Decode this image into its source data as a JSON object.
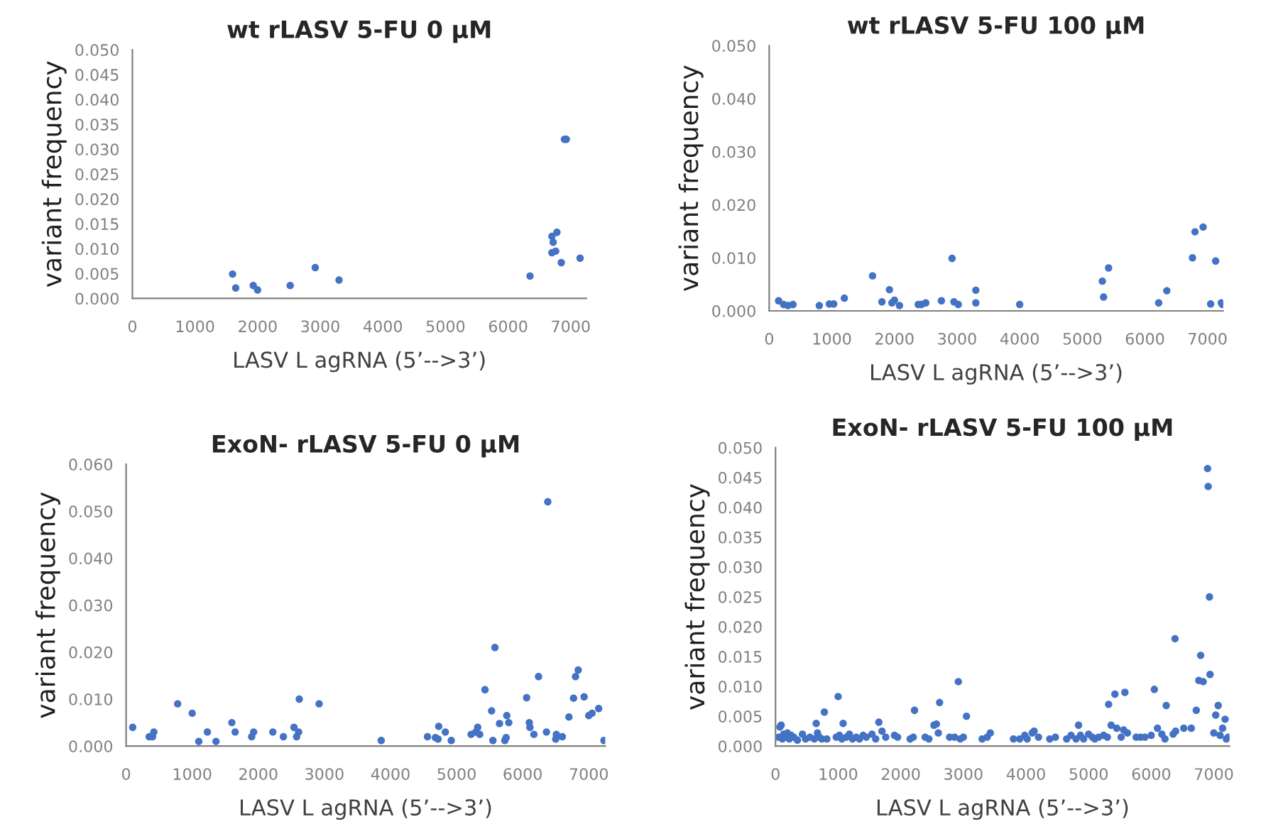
{
  "chart_data": [
    {
      "type": "scatter",
      "title": "wt rLASV 5-FU 0 μM",
      "xlabel": "LASV L agRNA (5’-->3’)",
      "ylabel": "variant frequency",
      "marker": "circle",
      "grid": false,
      "xlim": [
        0,
        7250
      ],
      "xticks": [
        0,
        1000,
        2000,
        3000,
        4000,
        5000,
        6000,
        7000
      ],
      "ylim": [
        0,
        0.05
      ],
      "yticks": [
        {
          "value": 0,
          "label": "0.000"
        },
        {
          "value": 0.005,
          "label": "0.005"
        },
        {
          "value": 0.01,
          "label": "0.010"
        },
        {
          "value": 0.015,
          "label": "0.015"
        },
        {
          "value": 0.02,
          "label": "0.020"
        },
        {
          "value": 0.025,
          "label": "0.025"
        },
        {
          "value": 0.03,
          "label": "0.030"
        },
        {
          "value": 0.035,
          "label": "0.035"
        },
        {
          "value": 0.04,
          "label": "0.040"
        },
        {
          "value": 0.045,
          "label": "0.045"
        },
        {
          "value": 0.05,
          "label": "0.050"
        }
      ],
      "series": [
        {
          "color": "#4472c4",
          "x": [
            1600,
            1650,
            1930,
            2000,
            2520,
            2920,
            3300,
            6350,
            6700,
            6720,
            6700,
            6760,
            6780,
            6850,
            6900,
            6930,
            7150
          ],
          "values": [
            0.0049,
            0.0021,
            0.0026,
            0.0017,
            0.0026,
            0.0062,
            0.0037,
            0.0045,
            0.0125,
            0.0113,
            0.0092,
            0.0095,
            0.0133,
            0.0072,
            0.032,
            0.032,
            0.0081
          ]
        }
      ]
    },
    {
      "type": "scatter",
      "title": "wt rLASV 5-FU 100 μM",
      "xlabel": "LASV L agRNA (5’-->3’)",
      "ylabel": "variant frequency",
      "marker": "circle",
      "grid": false,
      "xlim": [
        0,
        7250
      ],
      "xticks": [
        0,
        1000,
        2000,
        3000,
        4000,
        5000,
        6000,
        7000
      ],
      "ylim": [
        0,
        0.05
      ],
      "yticks": [
        {
          "value": 0,
          "label": "0.000"
        },
        {
          "value": 0.01,
          "label": "0.010"
        },
        {
          "value": 0.02,
          "label": "0.020"
        },
        {
          "value": 0.03,
          "label": "0.030"
        },
        {
          "value": 0.04,
          "label": "0.040"
        },
        {
          "value": 0.05,
          "label": "0.050"
        }
      ],
      "series": [
        {
          "color": "#4472c4",
          "x": [
            150,
            230,
            300,
            380,
            800,
            960,
            1030,
            1200,
            1650,
            1800,
            1920,
            1960,
            2000,
            2080,
            2380,
            2430,
            2500,
            2750,
            2920,
            2950,
            3020,
            3300,
            3300,
            4000,
            5320,
            5340,
            5420,
            6220,
            6350,
            6760,
            6800,
            6930,
            7050,
            7130,
            7220,
            7240
          ],
          "values": [
            0.0019,
            0.0012,
            0.001,
            0.0012,
            0.001,
            0.0013,
            0.0013,
            0.0024,
            0.0066,
            0.0017,
            0.004,
            0.0015,
            0.002,
            0.001,
            0.0012,
            0.0012,
            0.0015,
            0.0019,
            0.0099,
            0.0017,
            0.0012,
            0.0015,
            0.0039,
            0.0012,
            0.0056,
            0.0026,
            0.0081,
            0.0015,
            0.0038,
            0.01,
            0.0149,
            0.0158,
            0.0013,
            0.0094,
            0.0015,
            0.0012
          ]
        }
      ]
    },
    {
      "type": "scatter",
      "title": "ExoN- rLASV 5-FU 0 μM",
      "xlabel": "LASV L agRNA (5’-->3’)",
      "ylabel": "variant frequency",
      "marker": "circle",
      "grid": false,
      "xlim": [
        0,
        7250
      ],
      "xticks": [
        0,
        1000,
        2000,
        3000,
        4000,
        5000,
        6000,
        7000
      ],
      "ylim": [
        0,
        0.06
      ],
      "yticks": [
        {
          "value": 0,
          "label": "0.000"
        },
        {
          "value": 0.01,
          "label": "0.010"
        },
        {
          "value": 0.02,
          "label": "0.020"
        },
        {
          "value": 0.03,
          "label": "0.030"
        },
        {
          "value": 0.04,
          "label": "0.040"
        },
        {
          "value": 0.05,
          "label": "0.050"
        },
        {
          "value": 0.06,
          "label": "0.060"
        }
      ],
      "series": [
        {
          "color": "#4472c4",
          "x": [
            100,
            350,
            400,
            420,
            780,
            1000,
            1100,
            1230,
            1360,
            1600,
            1650,
            1900,
            1930,
            2220,
            2380,
            2540,
            2580,
            2610,
            2620,
            2920,
            3860,
            4560,
            4680,
            4720,
            4730,
            4830,
            4920,
            5220,
            5290,
            5320,
            5350,
            5430,
            5530,
            5550,
            5580,
            5650,
            5730,
            5750,
            5760,
            5790,
            6060,
            6100,
            6110,
            6170,
            6240,
            6360,
            6380,
            6500,
            6510,
            6600,
            6700,
            6770,
            6800,
            6840,
            6930,
            7000,
            7050,
            7150,
            7230
          ],
          "values": [
            0.004,
            0.002,
            0.002,
            0.003,
            0.009,
            0.007,
            0.001,
            0.003,
            0.001,
            0.005,
            0.003,
            0.002,
            0.003,
            0.003,
            0.002,
            0.004,
            0.002,
            0.003,
            0.01,
            0.009,
            0.0012,
            0.002,
            0.0018,
            0.0015,
            0.0042,
            0.003,
            0.0012,
            0.0025,
            0.003,
            0.004,
            0.0025,
            0.012,
            0.0075,
            0.0012,
            0.021,
            0.0048,
            0.0012,
            0.0018,
            0.0065,
            0.005,
            0.0103,
            0.005,
            0.004,
            0.0025,
            0.0148,
            0.003,
            0.052,
            0.0015,
            0.0025,
            0.002,
            0.0062,
            0.0102,
            0.0148,
            0.0162,
            0.0105,
            0.0065,
            0.007,
            0.008,
            0.0012
          ]
        }
      ]
    },
    {
      "type": "scatter",
      "title": "ExoN- rLASV 5-FU 100 μM",
      "xlabel": "LASV L agRNA (5’-->3’)",
      "ylabel": "variant frequency",
      "marker": "circle",
      "grid": false,
      "xlim": [
        0,
        7250
      ],
      "xticks": [
        0,
        1000,
        2000,
        3000,
        4000,
        5000,
        6000,
        7000
      ],
      "ylim": [
        0,
        0.05
      ],
      "yticks": [
        {
          "value": 0,
          "label": "0.000"
        },
        {
          "value": 0.005,
          "label": "0.005"
        },
        {
          "value": 0.01,
          "label": "0.010"
        },
        {
          "value": 0.015,
          "label": "0.015"
        },
        {
          "value": 0.02,
          "label": "0.020"
        },
        {
          "value": 0.025,
          "label": "0.025"
        },
        {
          "value": 0.03,
          "label": "0.030"
        },
        {
          "value": 0.035,
          "label": "0.035"
        },
        {
          "value": 0.04,
          "label": "0.040"
        },
        {
          "value": 0.045,
          "label": "0.045"
        },
        {
          "value": 0.05,
          "label": "0.050"
        }
      ],
      "series": [
        {
          "color": "#4472c4",
          "x": [
            50,
            70,
            90,
            110,
            130,
            160,
            190,
            220,
            250,
            290,
            350,
            430,
            480,
            550,
            620,
            650,
            670,
            700,
            740,
            780,
            820,
            970,
            1000,
            1020,
            1060,
            1080,
            1130,
            1180,
            1230,
            1290,
            1340,
            1400,
            1450,
            1540,
            1600,
            1650,
            1700,
            1760,
            1900,
            1950,
            2150,
            2200,
            2220,
            2390,
            2450,
            2530,
            2570,
            2600,
            2620,
            2780,
            2860,
            2920,
            2950,
            3000,
            3050,
            3300,
            3380,
            3430,
            3800,
            3900,
            3980,
            4020,
            4100,
            4130,
            4200,
            4380,
            4470,
            4650,
            4720,
            4800,
            4840,
            4870,
            4920,
            5000,
            5060,
            5100,
            5160,
            5240,
            5300,
            5320,
            5360,
            5420,
            5450,
            5520,
            5560,
            5580,
            5620,
            5760,
            5830,
            5900,
            6000,
            6050,
            6100,
            6170,
            6220,
            6240,
            6350,
            6380,
            6390,
            6520,
            6640,
            6720,
            6760,
            6790,
            6830,
            6900,
            6910,
            6930,
            6940,
            7000,
            7030,
            7070,
            7100,
            7140,
            7180,
            7200,
            7230
          ],
          "values": [
            0.0015,
            0.0032,
            0.0035,
            0.0012,
            0.002,
            0.0015,
            0.0022,
            0.0012,
            0.0018,
            0.0015,
            0.001,
            0.002,
            0.0012,
            0.0015,
            0.0012,
            0.0038,
            0.0022,
            0.0015,
            0.0012,
            0.0057,
            0.0012,
            0.0015,
            0.0083,
            0.0018,
            0.0012,
            0.0038,
            0.0015,
            0.002,
            0.0012,
            0.0015,
            0.0012,
            0.0018,
            0.0015,
            0.002,
            0.0012,
            0.004,
            0.0025,
            0.0015,
            0.0018,
            0.0015,
            0.0012,
            0.0015,
            0.006,
            0.0015,
            0.0012,
            0.0035,
            0.0037,
            0.0022,
            0.0073,
            0.0015,
            0.0015,
            0.0108,
            0.0012,
            0.0015,
            0.005,
            0.0012,
            0.0015,
            0.0022,
            0.0012,
            0.0012,
            0.0018,
            0.0012,
            0.0022,
            0.0025,
            0.0015,
            0.0012,
            0.0015,
            0.0012,
            0.0018,
            0.0012,
            0.0035,
            0.0018,
            0.0012,
            0.002,
            0.0015,
            0.0012,
            0.0015,
            0.0018,
            0.0015,
            0.007,
            0.0035,
            0.0087,
            0.003,
            0.0015,
            0.0027,
            0.009,
            0.0022,
            0.0015,
            0.0015,
            0.0015,
            0.0018,
            0.0095,
            0.003,
            0.002,
            0.0012,
            0.0068,
            0.002,
            0.018,
            0.0025,
            0.003,
            0.003,
            0.006,
            0.011,
            0.0152,
            0.0108,
            0.0465,
            0.0435,
            0.025,
            0.012,
            0.0022,
            0.0052,
            0.0068,
            0.0018,
            0.003,
            0.0045,
            0.0012,
            0.0015
          ]
        }
      ]
    }
  ]
}
